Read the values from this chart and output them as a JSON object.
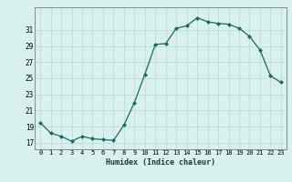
{
  "x": [
    0,
    1,
    2,
    3,
    4,
    5,
    6,
    7,
    8,
    9,
    10,
    11,
    12,
    13,
    14,
    15,
    16,
    17,
    18,
    19,
    20,
    21,
    22,
    23
  ],
  "y": [
    19.5,
    18.2,
    17.8,
    17.2,
    17.8,
    17.5,
    17.4,
    17.3,
    19.2,
    22.0,
    25.5,
    29.2,
    29.3,
    31.2,
    31.5,
    32.5,
    32.0,
    31.8,
    31.7,
    31.2,
    30.2,
    28.5,
    25.3,
    24.5
  ],
  "line_color": "#1a6b5a",
  "marker": "D",
  "marker_size": 2.0,
  "bg_color": "#d8f0ee",
  "grid_color": "#c0dcd8",
  "xlabel": "Humidex (Indice chaleur)",
  "ylabel_ticks": [
    17,
    19,
    21,
    23,
    25,
    27,
    29,
    31
  ],
  "xlim": [
    -0.5,
    23.5
  ],
  "ylim": [
    16.2,
    33.8
  ],
  "title": ""
}
